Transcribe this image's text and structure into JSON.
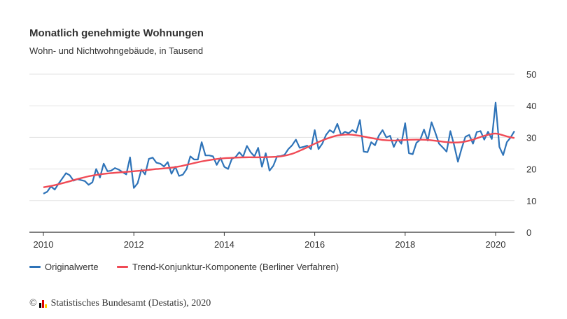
{
  "chart_data": {
    "type": "line",
    "title": "Monatlich genehmigte Wohnungen",
    "subtitle": "Wohn- und Nichtwohngebäude, in Tausend",
    "xlabel": "",
    "ylabel": "",
    "ylim": [
      0,
      50
    ],
    "yticks": [
      "0",
      "10",
      "20",
      "30",
      "40",
      "50"
    ],
    "xticks": [
      "2010",
      "2012",
      "2014",
      "2016",
      "2018",
      "2020"
    ],
    "xlim": [
      "2010-01",
      "2020-06"
    ],
    "grid": true,
    "legend_position": "bottom-left",
    "series": [
      {
        "name": "Originalwerte",
        "color": "#2e73b8",
        "start": "2010-01",
        "frequency": "monthly",
        "values": [
          12.2,
          12.8,
          14.5,
          13.5,
          15.3,
          17,
          18.7,
          18,
          16.3,
          16.8,
          16.5,
          16.2,
          15,
          15.8,
          20,
          17.3,
          21.7,
          19.3,
          19.5,
          20.3,
          19.8,
          19,
          18.3,
          23.7,
          14,
          15.5,
          19.8,
          18.3,
          23.2,
          23.6,
          22,
          21.7,
          20.8,
          22.2,
          18.5,
          20.7,
          17.8,
          18.2,
          20,
          24,
          23,
          23,
          28.5,
          24.3,
          24.3,
          24,
          21.3,
          23.5,
          20.7,
          20,
          23.2,
          23.8,
          25.3,
          23.9,
          27.3,
          25.3,
          24,
          26.7,
          20.7,
          25,
          19.5,
          21,
          24,
          24.1,
          24.5,
          26.3,
          27.5,
          29.3,
          26.7,
          27,
          27.4,
          26.3,
          32.3,
          26.3,
          28,
          30.8,
          32.3,
          31.5,
          34.3,
          30.8,
          31.8,
          31.3,
          32.3,
          31.5,
          35.5,
          25.5,
          25.3,
          28.5,
          27.5,
          30.5,
          32.3,
          30,
          30.5,
          27,
          29.5,
          28,
          34.5,
          25,
          24.7,
          28.3,
          29.3,
          32.5,
          29,
          34.8,
          31.5,
          28,
          26.8,
          25.5,
          32,
          27.5,
          22.3,
          26.5,
          30.2,
          30.8,
          28,
          31.7,
          32,
          29.3,
          31.8,
          29.5,
          41,
          27,
          24.4,
          28.5,
          30,
          32
        ]
      },
      {
        "name": "Trend-Konjunktur-Komponente (Berliner Verfahren)",
        "color": "#f04a55",
        "points": [
          [
            "2010-01",
            14.2
          ],
          [
            "2010-04",
            14.9
          ],
          [
            "2010-07",
            15.8
          ],
          [
            "2010-10",
            16.8
          ],
          [
            "2011-01",
            17.7
          ],
          [
            "2011-04",
            18.3
          ],
          [
            "2011-07",
            18.7
          ],
          [
            "2011-10",
            19.0
          ],
          [
            "2012-01",
            19.3
          ],
          [
            "2012-04",
            19.6
          ],
          [
            "2012-07",
            20.0
          ],
          [
            "2012-10",
            20.3
          ],
          [
            "2013-01",
            20.8
          ],
          [
            "2013-04",
            21.6
          ],
          [
            "2013-07",
            22.4
          ],
          [
            "2013-10",
            23.0
          ],
          [
            "2014-01",
            23.4
          ],
          [
            "2014-04",
            23.6
          ],
          [
            "2014-07",
            23.7
          ],
          [
            "2014-10",
            23.7
          ],
          [
            "2015-01",
            23.8
          ],
          [
            "2015-04",
            24.0
          ],
          [
            "2015-07",
            24.8
          ],
          [
            "2015-10",
            26.3
          ],
          [
            "2016-01",
            28.0
          ],
          [
            "2016-04",
            29.5
          ],
          [
            "2016-07",
            30.6
          ],
          [
            "2016-10",
            30.9
          ],
          [
            "2017-01",
            30.5
          ],
          [
            "2017-04",
            29.8
          ],
          [
            "2017-07",
            29.2
          ],
          [
            "2017-10",
            29.0
          ],
          [
            "2018-01",
            29.2
          ],
          [
            "2018-04",
            29.3
          ],
          [
            "2018-07",
            29.2
          ],
          [
            "2018-10",
            28.8
          ],
          [
            "2019-01",
            28.4
          ],
          [
            "2019-04",
            28.5
          ],
          [
            "2019-07",
            29.3
          ],
          [
            "2019-10",
            30.5
          ],
          [
            "2020-01",
            31.2
          ],
          [
            "2020-04",
            30.3
          ],
          [
            "2020-06",
            29.8
          ]
        ]
      }
    ]
  },
  "footer": {
    "copyright_symbol": "©",
    "source": "Statistisches Bundesamt (Destatis), 2020",
    "logo_colors": [
      "#000000",
      "#dd0000",
      "#ffcc00"
    ]
  }
}
